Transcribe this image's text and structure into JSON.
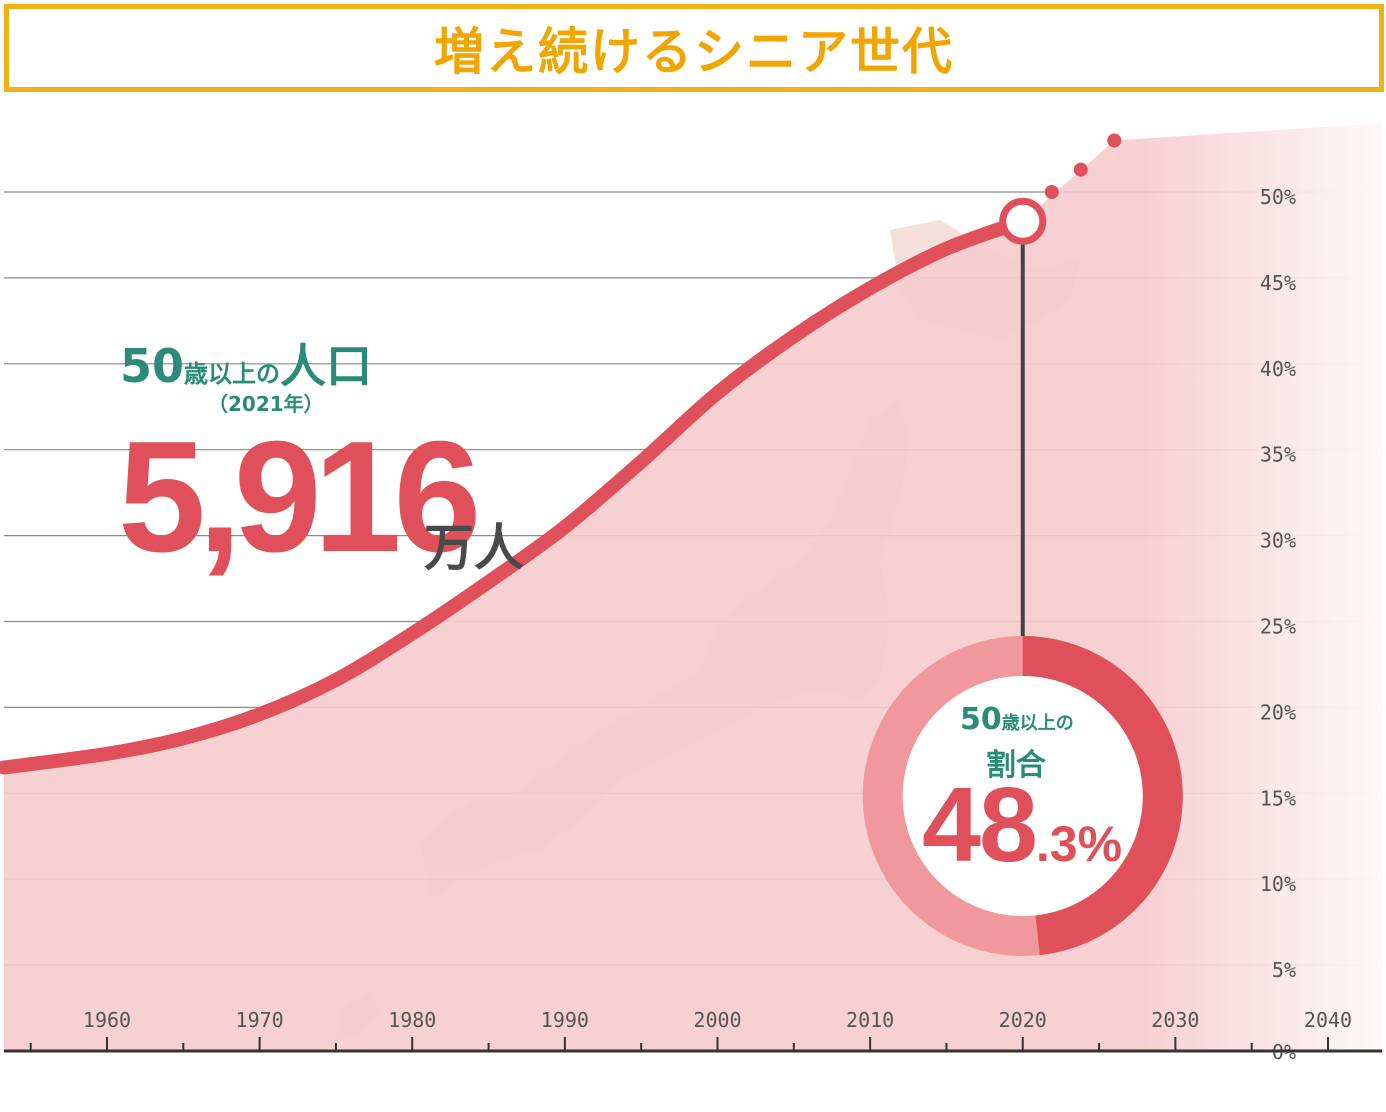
{
  "header": {
    "title": "増え続けるシニア世代"
  },
  "population": {
    "label_num": "50",
    "label_small": "歳以上の",
    "label_kanji": "人口",
    "year": "（2021年）",
    "value": "5,916",
    "unit": "万人"
  },
  "ratio": {
    "label_num": "50",
    "label_small": "歳以上の",
    "label_kanji": "割合",
    "value_int": "48",
    "value_dec": ".3",
    "value_pct": "%"
  },
  "colors": {
    "title_border": "#f2b213",
    "title_text": "#f0a500",
    "line": "#e0505a",
    "fill": "#f6cccd",
    "label_green": "#2a8c78",
    "map": "#e9b7ae"
  },
  "chart_data": {
    "type": "area",
    "title": "増え続けるシニア世代",
    "x_tick_labels": [
      "1960",
      "1970",
      "1980",
      "1990",
      "2000",
      "2010",
      "2020",
      "2030",
      "2040"
    ],
    "y_tick_labels": [
      "0%",
      "5%",
      "10%",
      "15%",
      "20%",
      "25%",
      "30%",
      "35%",
      "40%",
      "45%",
      "50%"
    ],
    "xlim": [
      1955,
      2043
    ],
    "ylim": [
      0,
      50
    ],
    "grid": true,
    "series": [
      {
        "values": [
          {
            "x": 1955,
            "y": 16.5
          },
          {
            "x": 1960,
            "y": 17.3
          },
          {
            "x": 1965,
            "y": 18.2
          },
          {
            "x": 1970,
            "y": 19.6
          },
          {
            "x": 1975,
            "y": 21.6
          },
          {
            "x": 1980,
            "y": 24.3
          },
          {
            "x": 1985,
            "y": 27.3
          },
          {
            "x": 1990,
            "y": 30.5
          },
          {
            "x": 1995,
            "y": 34.3
          },
          {
            "x": 2000,
            "y": 38.3
          },
          {
            "x": 2005,
            "y": 41.6
          },
          {
            "x": 2010,
            "y": 44.4
          },
          {
            "x": 2015,
            "y": 46.7
          },
          {
            "x": 2020,
            "y": 48.3
          }
        ]
      }
    ],
    "projection_dots": [
      {
        "x": 2021.9,
        "y": 50.0
      },
      {
        "x": 2023.8,
        "y": 51.3
      },
      {
        "x": 2026.0,
        "y": 53.0
      }
    ],
    "highlight": {
      "x": 2020,
      "y": 48.3
    }
  }
}
